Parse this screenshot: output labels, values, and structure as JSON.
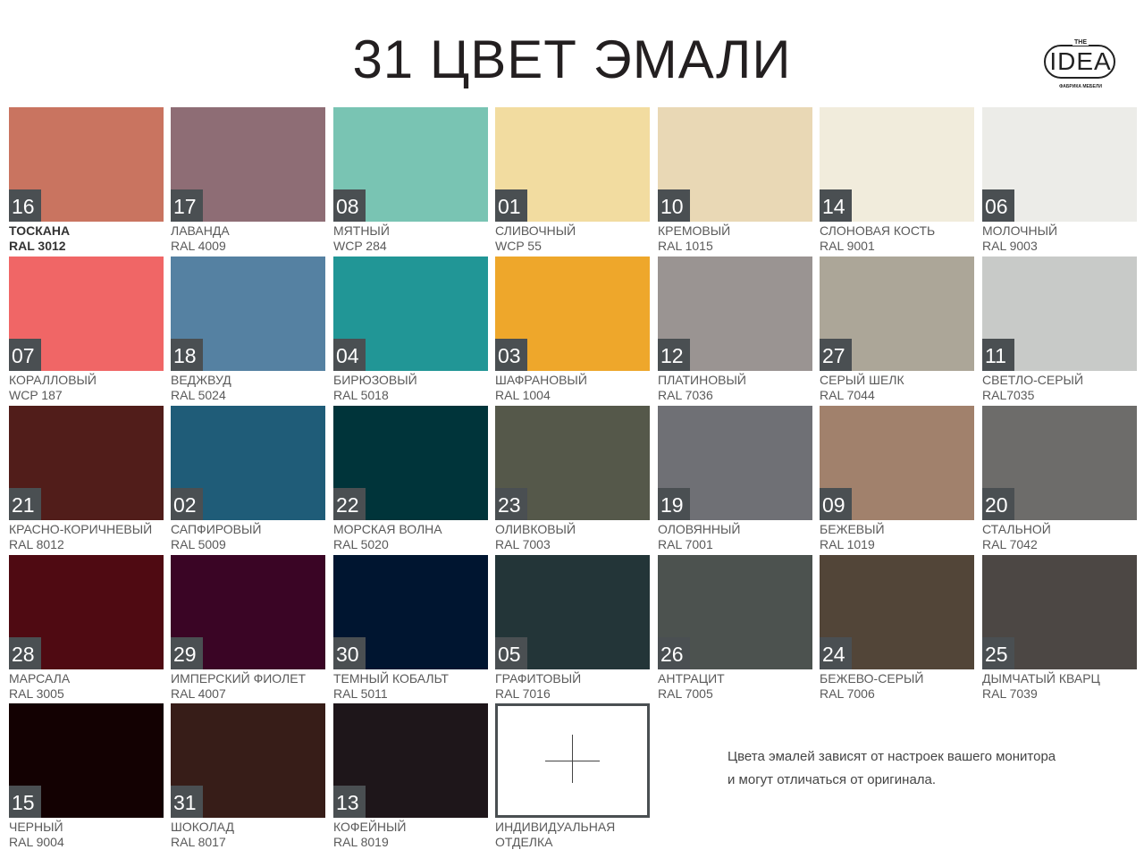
{
  "title": "31 ЦВЕТ ЭМАЛИ",
  "logo": {
    "the": "THE",
    "name": "IDEA",
    "subtitle": "ФАБРИКА МЕБЕЛИ"
  },
  "swatches": [
    {
      "number": "16",
      "name": "ТОСКАНА",
      "code": "RAL 3012",
      "color": "#c97460"
    },
    {
      "number": "17",
      "name": "ЛАВАНДА",
      "code": "RAL 4009",
      "color": "#8e6d75"
    },
    {
      "number": "08",
      "name": "МЯТНЫЙ",
      "code": "WCP 284",
      "color": "#79c4b3"
    },
    {
      "number": "01",
      "name": "СЛИВОЧНЫЙ",
      "code": "WCP 55",
      "color": "#f2dca0"
    },
    {
      "number": "10",
      "name": "КРЕМОВЫЙ",
      "code": "RAL 1015",
      "color": "#e9d8b5"
    },
    {
      "number": "14",
      "name": "СЛОНОВАЯ КОСТЬ",
      "code": "RAL 9001",
      "color": "#f1ecdc"
    },
    {
      "number": "06",
      "name": "МОЛОЧНЫЙ",
      "code": "RAL 9003",
      "color": "#ecece8"
    },
    {
      "number": "07",
      "name": "КОРАЛЛОВЫЙ",
      "code": "WCP 187",
      "color": "#f06666"
    },
    {
      "number": "18",
      "name": "ВЕДЖВУД",
      "code": "RAL 5024",
      "color": "#5581a2"
    },
    {
      "number": "04",
      "name": "БИРЮЗОВЫЙ",
      "code": "RAL 5018",
      "color": "#219696"
    },
    {
      "number": "03",
      "name": "ШАФРАНОВЫЙ",
      "code": "RAL 1004",
      "color": "#eea72b"
    },
    {
      "number": "12",
      "name": "ПЛАТИНОВЫЙ",
      "code": "RAL 7036",
      "color": "#9a9492"
    },
    {
      "number": "27",
      "name": "СЕРЫЙ ШЕЛК",
      "code": "RAL 7044",
      "color": "#aca698"
    },
    {
      "number": "11",
      "name": "СВЕТЛО-СЕРЫЙ",
      "code": "RAL7035",
      "color": "#c8cac8"
    },
    {
      "number": "21",
      "name": "КРАСНО-КОРИЧНЕВЫЙ",
      "code": "RAL 8012",
      "color": "#511d1a"
    },
    {
      "number": "02",
      "name": "САПФИРОВЫЙ",
      "code": "RAL 5009",
      "color": "#1f5c78"
    },
    {
      "number": "22",
      "name": "МОРСКАЯ ВОЛНА",
      "code": "RAL 5020",
      "color": "#00343a"
    },
    {
      "number": "23",
      "name": "ОЛИВКОВЫЙ",
      "code": "RAL 7003",
      "color": "#55584a"
    },
    {
      "number": "19",
      "name": "ОЛОВЯННЫЙ",
      "code": "RAL 7001",
      "color": "#6f7075"
    },
    {
      "number": "09",
      "name": "БЕЖЕВЫЙ",
      "code": "RAL 1019",
      "color": "#a1816c"
    },
    {
      "number": "20",
      "name": "СТАЛЬНОЙ",
      "code": "RAL 7042",
      "color": "#6d6c6a"
    },
    {
      "number": "28",
      "name": "МАРСАЛА",
      "code": "RAL 3005",
      "color": "#4f0a12"
    },
    {
      "number": "29",
      "name": "ИМПЕРСКИЙ ФИОЛЕТ",
      "code": "RAL 4007",
      "color": "#3a0525"
    },
    {
      "number": "30",
      "name": "ТЕМНЫЙ КОБАЛЬТ",
      "code": "RAL 5011",
      "color": "#001530"
    },
    {
      "number": "05",
      "name": "ГРАФИТОВЫЙ",
      "code": "RAL 7016",
      "color": "#233538"
    },
    {
      "number": "26",
      "name": "АНТРАЦИТ",
      "code": "RAL 7005",
      "color": "#4c524f"
    },
    {
      "number": "24",
      "name": "БЕЖЕВО-СЕРЫЙ",
      "code": "RAL 7006",
      "color": "#524538"
    },
    {
      "number": "25",
      "name": "ДЫМЧАТЫЙ КВАРЦ",
      "code": "RAL 7039",
      "color": "#4c4744"
    },
    {
      "number": "15",
      "name": "ЧЕРНЫЙ",
      "code": "RAL 9004",
      "color": "#130102"
    },
    {
      "number": "31",
      "name": "ШОКОЛАД",
      "code": "RAL 8017",
      "color": "#371d18"
    },
    {
      "number": "13",
      "name": "КОФЕЙНЫЙ",
      "code": "RAL 8019",
      "color": "#1e161a"
    }
  ],
  "custom": {
    "line1": "ИНДИВИДУАЛЬНАЯ",
    "line2": "ОТДЕЛКА"
  },
  "note": {
    "line1": "Цвета эмалей зависят от настроек  вашего монитора",
    "line2": "и могут отличаться  от оригинала."
  },
  "badge_color": "#4a4f52"
}
